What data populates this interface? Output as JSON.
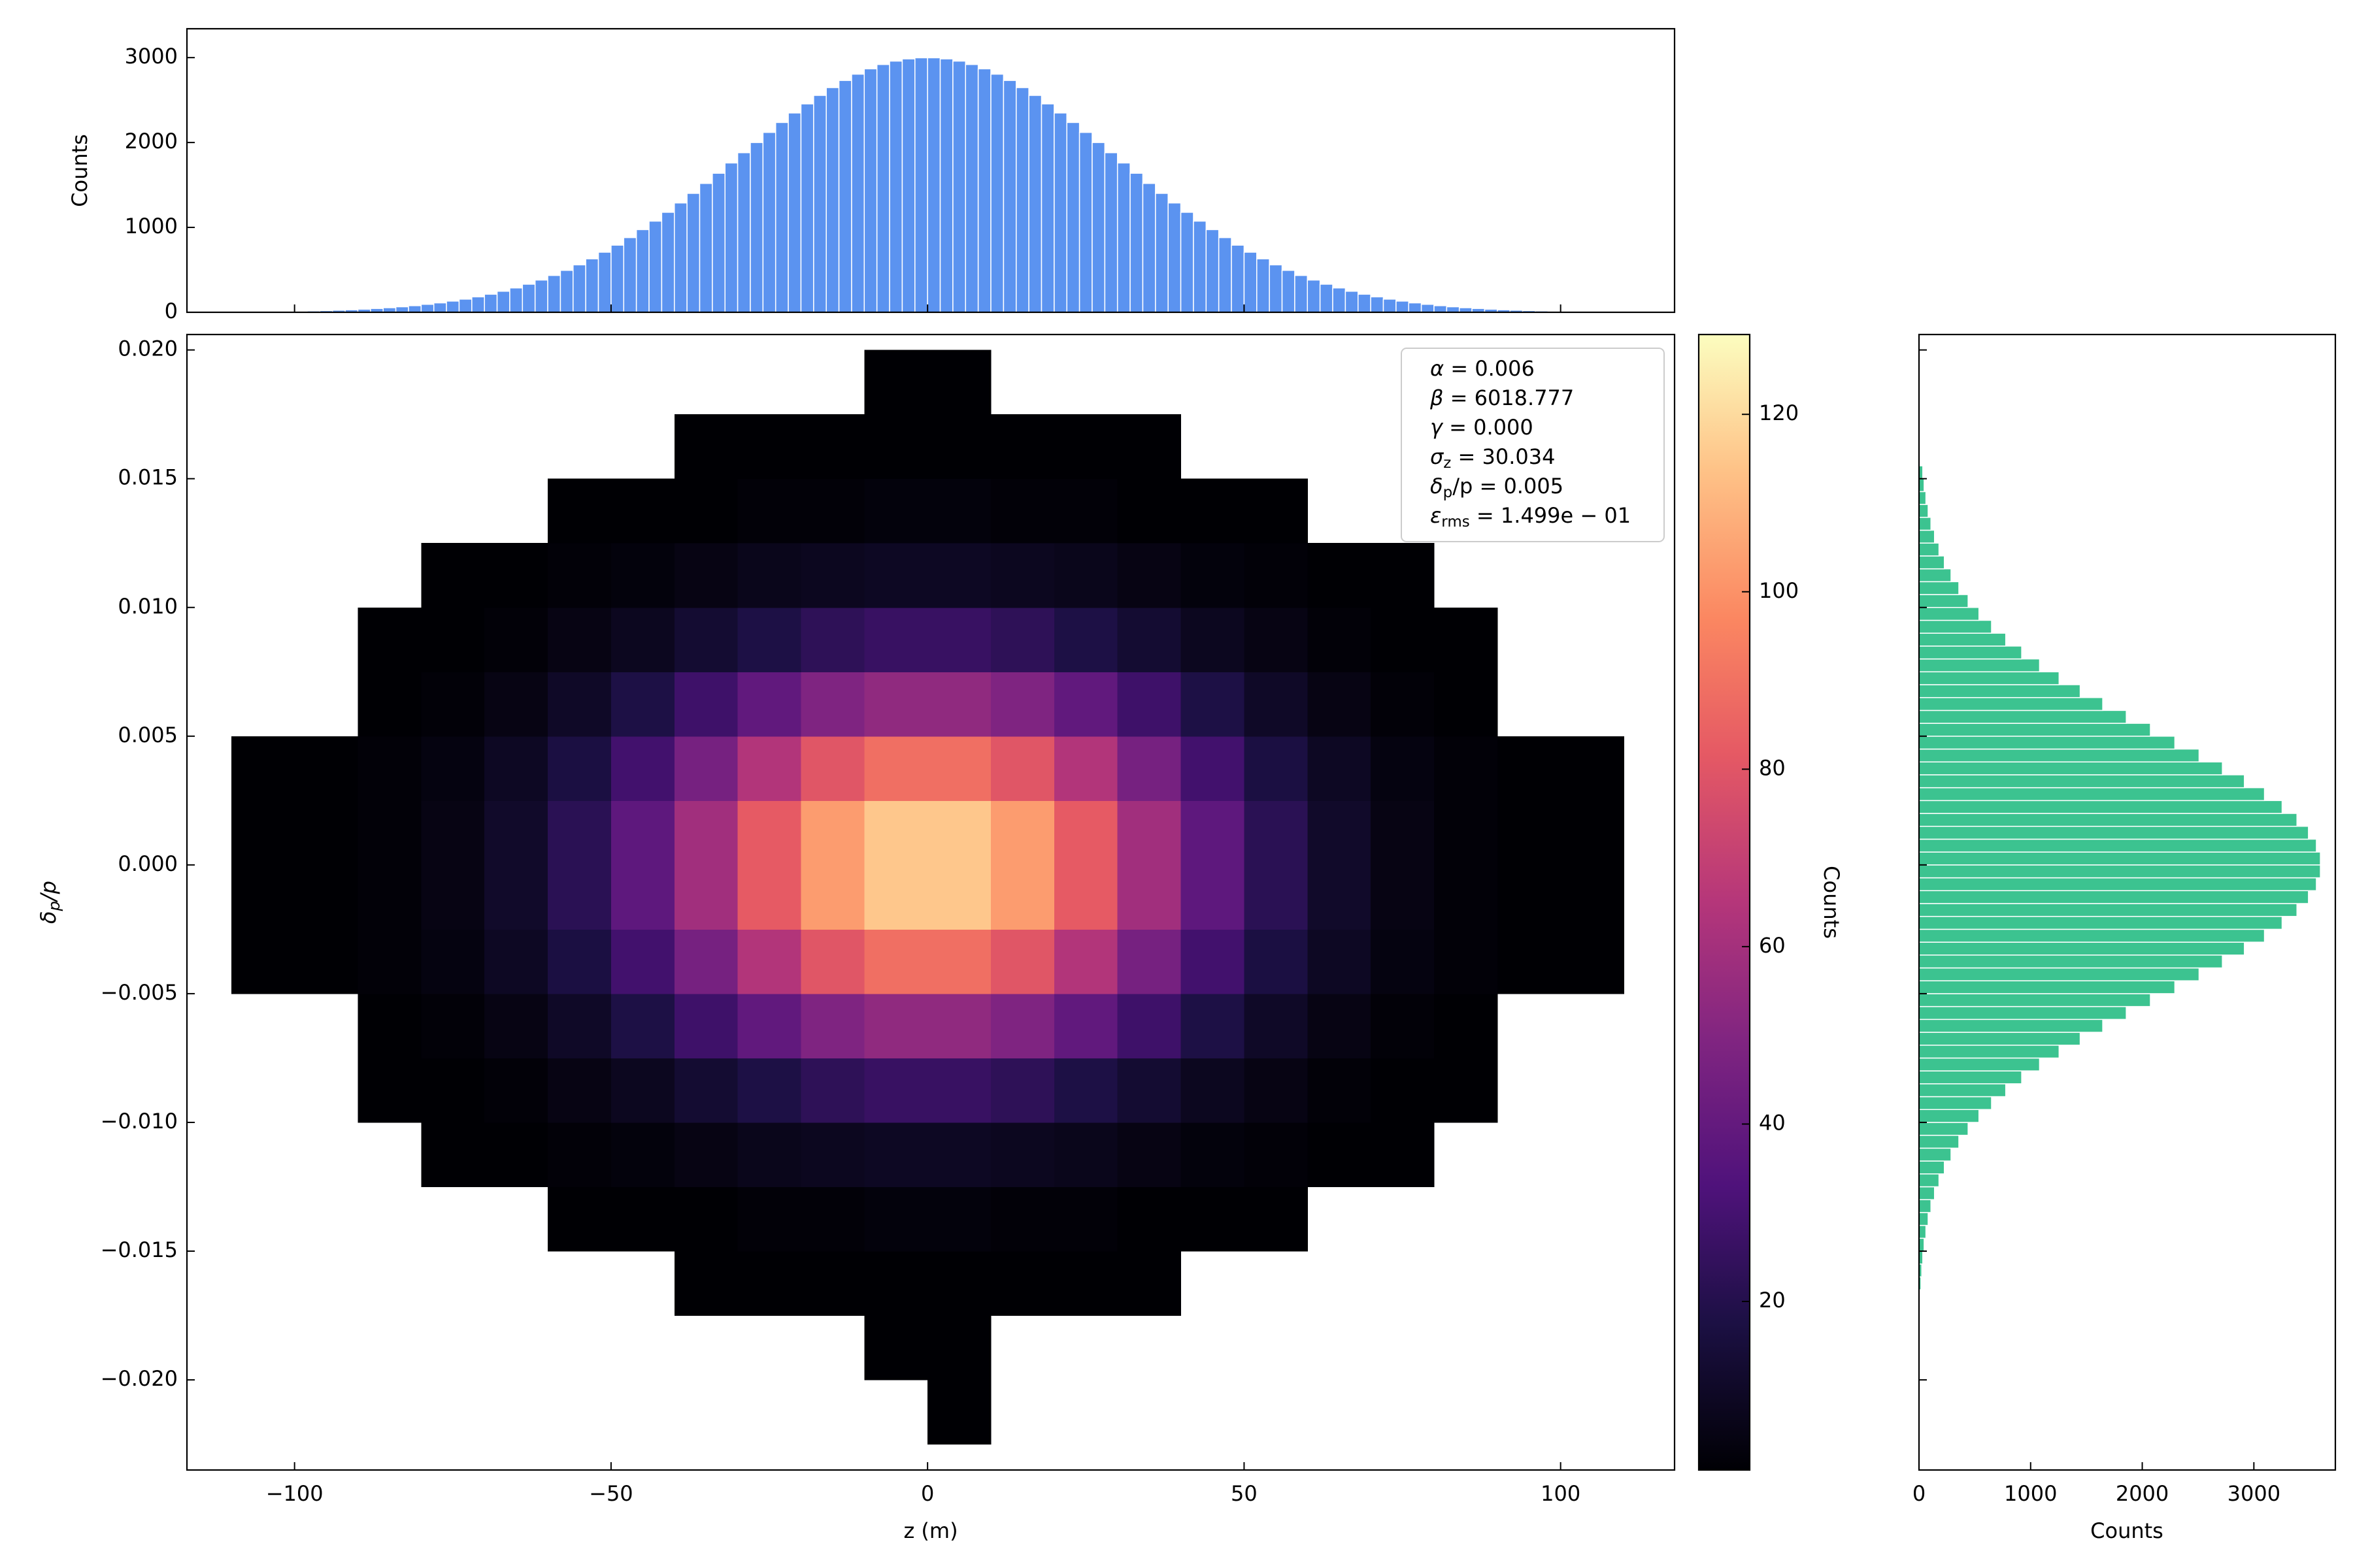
{
  "chart_data": [
    {
      "type": "hist2d",
      "xlabel": "z (m)",
      "ylabel": {
        "symbol": "δ",
        "subscript": "p",
        "text": "/p"
      },
      "xlim": [
        -117,
        118
      ],
      "ylim": [
        -0.0235,
        0.0206
      ],
      "xticks": [
        {
          "value": -100,
          "label": "−100"
        },
        {
          "value": -50,
          "label": "−50"
        },
        0,
        50,
        100
      ],
      "yticks": [
        {
          "value": -0.02,
          "label": "−0.020"
        },
        {
          "value": -0.015,
          "label": "−0.015"
        },
        {
          "value": -0.01,
          "label": "−0.010"
        },
        {
          "value": -0.005,
          "label": "−0.005"
        },
        {
          "value": 0,
          "label": "0.000"
        },
        {
          "value": 0.005,
          "label": "0.005"
        },
        {
          "value": 0.01,
          "label": "0.010"
        },
        {
          "value": 0.015,
          "label": "0.015"
        },
        {
          "value": 0.02,
          "label": "0.020"
        }
      ],
      "xbins": [
        -120,
        -110,
        -100,
        -90,
        -80,
        -70,
        -60,
        -50,
        -40,
        -30,
        -20,
        -10,
        0,
        10,
        20,
        30,
        40,
        50,
        60,
        70,
        80,
        90,
        100,
        110,
        120
      ],
      "ybins": [
        -0.0225,
        -0.02,
        -0.0175,
        -0.015,
        -0.0125,
        -0.01,
        -0.0075,
        -0.005,
        -0.0025,
        0,
        0.0025,
        0.005,
        0.0075,
        0.01,
        0.0125,
        0.015,
        0.0175,
        0.02
      ],
      "values": [
        [
          null,
          null,
          null,
          null,
          null,
          null,
          null,
          null,
          null,
          null,
          null,
          null,
          1,
          null,
          null,
          null,
          null,
          null,
          null,
          null,
          null,
          null,
          null,
          null
        ],
        [
          null,
          null,
          null,
          null,
          null,
          null,
          null,
          null,
          null,
          null,
          null,
          1,
          1,
          null,
          null,
          null,
          null,
          null,
          null,
          null,
          null,
          null,
          null,
          null
        ],
        [
          null,
          null,
          null,
          null,
          null,
          null,
          null,
          null,
          1,
          1,
          1,
          1,
          1,
          1,
          1,
          1,
          null,
          null,
          null,
          null,
          null,
          null,
          null,
          null
        ],
        [
          null,
          null,
          null,
          null,
          null,
          null,
          1,
          1,
          1,
          2,
          2,
          3,
          3,
          2,
          2,
          1,
          1,
          1,
          null,
          null,
          null,
          null,
          null,
          null
        ],
        [
          null,
          null,
          null,
          null,
          1,
          1,
          2,
          3,
          5,
          7,
          8,
          9,
          9,
          8,
          7,
          5,
          3,
          2,
          1,
          1,
          null,
          null,
          null,
          null
        ],
        [
          null,
          null,
          null,
          1,
          1,
          2,
          5,
          8,
          13,
          18,
          23,
          26,
          26,
          23,
          18,
          13,
          8,
          5,
          2,
          1,
          1,
          null,
          null,
          null
        ],
        [
          null,
          null,
          null,
          1,
          2,
          5,
          10,
          18,
          28,
          39,
          49,
          54,
          54,
          49,
          39,
          28,
          18,
          10,
          5,
          2,
          1,
          null,
          null,
          null
        ],
        [
          null,
          1,
          1,
          2,
          4,
          9,
          17,
          29,
          46,
          64,
          80,
          89,
          89,
          80,
          64,
          46,
          29,
          17,
          9,
          4,
          2,
          1,
          1,
          null
        ],
        [
          null,
          1,
          1,
          2,
          5,
          11,
          22,
          38,
          59,
          82,
          103,
          115,
          115,
          103,
          82,
          59,
          38,
          22,
          11,
          5,
          2,
          1,
          1,
          null
        ],
        [
          null,
          1,
          1,
          2,
          5,
          11,
          22,
          38,
          59,
          82,
          103,
          115,
          115,
          103,
          82,
          59,
          38,
          22,
          11,
          5,
          2,
          1,
          1,
          null
        ],
        [
          null,
          1,
          1,
          2,
          4,
          9,
          17,
          29,
          46,
          64,
          80,
          89,
          89,
          80,
          64,
          46,
          29,
          17,
          9,
          4,
          2,
          1,
          1,
          null
        ],
        [
          null,
          null,
          null,
          1,
          2,
          5,
          10,
          18,
          28,
          39,
          49,
          54,
          54,
          49,
          39,
          28,
          18,
          10,
          5,
          2,
          1,
          null,
          null,
          null
        ],
        [
          null,
          null,
          null,
          1,
          1,
          2,
          5,
          8,
          13,
          18,
          23,
          26,
          26,
          23,
          18,
          13,
          8,
          5,
          2,
          1,
          1,
          null,
          null,
          null
        ],
        [
          null,
          null,
          null,
          null,
          1,
          1,
          2,
          3,
          5,
          7,
          8,
          9,
          9,
          8,
          7,
          5,
          3,
          2,
          1,
          1,
          null,
          null,
          null,
          null
        ],
        [
          null,
          null,
          null,
          null,
          null,
          null,
          1,
          1,
          1,
          2,
          2,
          3,
          3,
          2,
          2,
          1,
          1,
          1,
          null,
          null,
          null,
          null,
          null,
          null
        ],
        [
          null,
          null,
          null,
          null,
          null,
          null,
          null,
          null,
          1,
          1,
          1,
          1,
          1,
          1,
          1,
          1,
          null,
          null,
          null,
          null,
          null,
          null,
          null,
          null
        ],
        [
          null,
          null,
          null,
          null,
          null,
          null,
          null,
          null,
          null,
          null,
          null,
          1,
          1,
          null,
          null,
          null,
          null,
          null,
          null,
          null,
          null,
          null,
          null,
          null
        ]
      ],
      "colormap": "magma",
      "clim": [
        1,
        129
      ],
      "cticks": [
        20,
        40,
        60,
        80,
        100,
        120
      ],
      "colorbar_label": "Counts",
      "annotations": [
        {
          "symbol": "α",
          "text": " = 0.006"
        },
        {
          "symbol": "β",
          "text": " = 6018.777"
        },
        {
          "symbol": "γ",
          "text": " = 0.000"
        },
        {
          "symbol": "σ",
          "subscript": "z",
          "text": " = 30.034"
        },
        {
          "symbol": "δ",
          "subscript": "p",
          "text": "/p = 0.005"
        },
        {
          "symbol": "ε",
          "subscript": "rms",
          "text": " = 1.499e − 01"
        }
      ]
    },
    {
      "type": "histogram",
      "orientation": "vertical",
      "color": "#5b93f0",
      "ylabel": "Counts",
      "xlim": [
        -117,
        118
      ],
      "ylim": [
        0,
        3340
      ],
      "xticks": [
        -100,
        -50,
        0,
        50,
        100
      ],
      "yticks": [
        0,
        1000,
        2000,
        3000
      ],
      "bins": [
        -100,
        -98,
        -96,
        -94,
        -92,
        -90,
        -88,
        -86,
        -84,
        -82,
        -80,
        -78,
        -76,
        -74,
        -72,
        -70,
        -68,
        -66,
        -64,
        -62,
        -60,
        -58,
        -56,
        -54,
        -52,
        -50,
        -48,
        -46,
        -44,
        -42,
        -40,
        -38,
        -36,
        -34,
        -32,
        -30,
        -28,
        -26,
        -24,
        -22,
        -20,
        -18,
        -16,
        -14,
        -12,
        -10,
        -8,
        -6,
        -4,
        -2,
        0,
        2,
        4,
        6,
        8,
        10,
        12,
        14,
        16,
        18,
        20,
        22,
        24,
        26,
        28,
        30,
        32,
        34,
        36,
        38,
        40,
        42,
        44,
        46,
        48,
        50,
        52,
        54,
        56,
        58,
        60,
        62,
        64,
        66,
        68,
        70,
        72,
        74,
        76,
        78,
        80,
        82,
        84,
        86,
        88,
        90,
        92,
        94,
        96,
        98,
        100
      ],
      "values": [
        13,
        16,
        20,
        25,
        30,
        37,
        45,
        54,
        65,
        78,
        94,
        111,
        132,
        155,
        182,
        213,
        248,
        287,
        331,
        380,
        434,
        494,
        559,
        630,
        708,
        791,
        880,
        974,
        1074,
        1178,
        1288,
        1401,
        1518,
        1638,
        1759,
        1880,
        2000,
        2119,
        2236,
        2348,
        2455,
        2555,
        2647,
        2731,
        2805,
        2868,
        2919,
        2959,
        2985,
        2998,
        2998,
        2985,
        2959,
        2919,
        2868,
        2805,
        2731,
        2647,
        2555,
        2455,
        2348,
        2236,
        2119,
        2000,
        1880,
        1759,
        1638,
        1518,
        1401,
        1288,
        1178,
        1074,
        974,
        880,
        791,
        708,
        630,
        559,
        494,
        434,
        380,
        331,
        287,
        248,
        213,
        182,
        155,
        132,
        111,
        94,
        78,
        65,
        54,
        45,
        37,
        30,
        25,
        20,
        16,
        13
      ]
    },
    {
      "type": "histogram",
      "orientation": "horizontal",
      "color": "#3cc390",
      "xlabel": "Counts",
      "xlim": [
        0,
        3730
      ],
      "ylim": [
        -0.0235,
        0.0206
      ],
      "xticks": [
        0,
        1000,
        2000,
        3000
      ],
      "yticks": [
        -0.02,
        -0.015,
        -0.01,
        -0.005,
        0,
        0.005,
        0.01,
        0.015,
        0.02
      ],
      "bins": [
        -0.0165,
        -0.016,
        -0.0155,
        -0.015,
        -0.0145,
        -0.014,
        -0.0135,
        -0.013,
        -0.0125,
        -0.012,
        -0.0115,
        -0.011,
        -0.0105,
        -0.01,
        -0.0095,
        -0.009,
        -0.0085,
        -0.008,
        -0.0075,
        -0.007,
        -0.0065,
        -0.006,
        -0.0055,
        -0.005,
        -0.0045,
        -0.004,
        -0.0035,
        -0.003,
        -0.0025,
        -0.002,
        -0.0015,
        -0.001,
        -0.0005,
        0,
        0.0005,
        0.001,
        0.0015,
        0.002,
        0.0025,
        0.003,
        0.0035,
        0.004,
        0.0045,
        0.005,
        0.0055,
        0.006,
        0.0065,
        0.007,
        0.0075,
        0.008,
        0.0085,
        0.009,
        0.0095,
        0.01,
        0.0105,
        0.011,
        0.0115,
        0.012,
        0.0125,
        0.013,
        0.0135,
        0.014,
        0.0145,
        0.015,
        0.0155
      ],
      "values": [
        18,
        25,
        34,
        46,
        62,
        82,
        107,
        139,
        179,
        227,
        287,
        357,
        440,
        537,
        650,
        777,
        920,
        1080,
        1255,
        1444,
        1646,
        1857,
        2073,
        2292,
        2509,
        2718,
        2915,
        3095,
        3253,
        3386,
        3489,
        3560,
        3596,
        3596,
        3560,
        3489,
        3386,
        3253,
        3095,
        2915,
        2718,
        2509,
        2292,
        2073,
        1857,
        1646,
        1444,
        1255,
        1080,
        920,
        777,
        650,
        537,
        440,
        357,
        287,
        227,
        179,
        139,
        107,
        82,
        62,
        46,
        34
      ]
    }
  ]
}
